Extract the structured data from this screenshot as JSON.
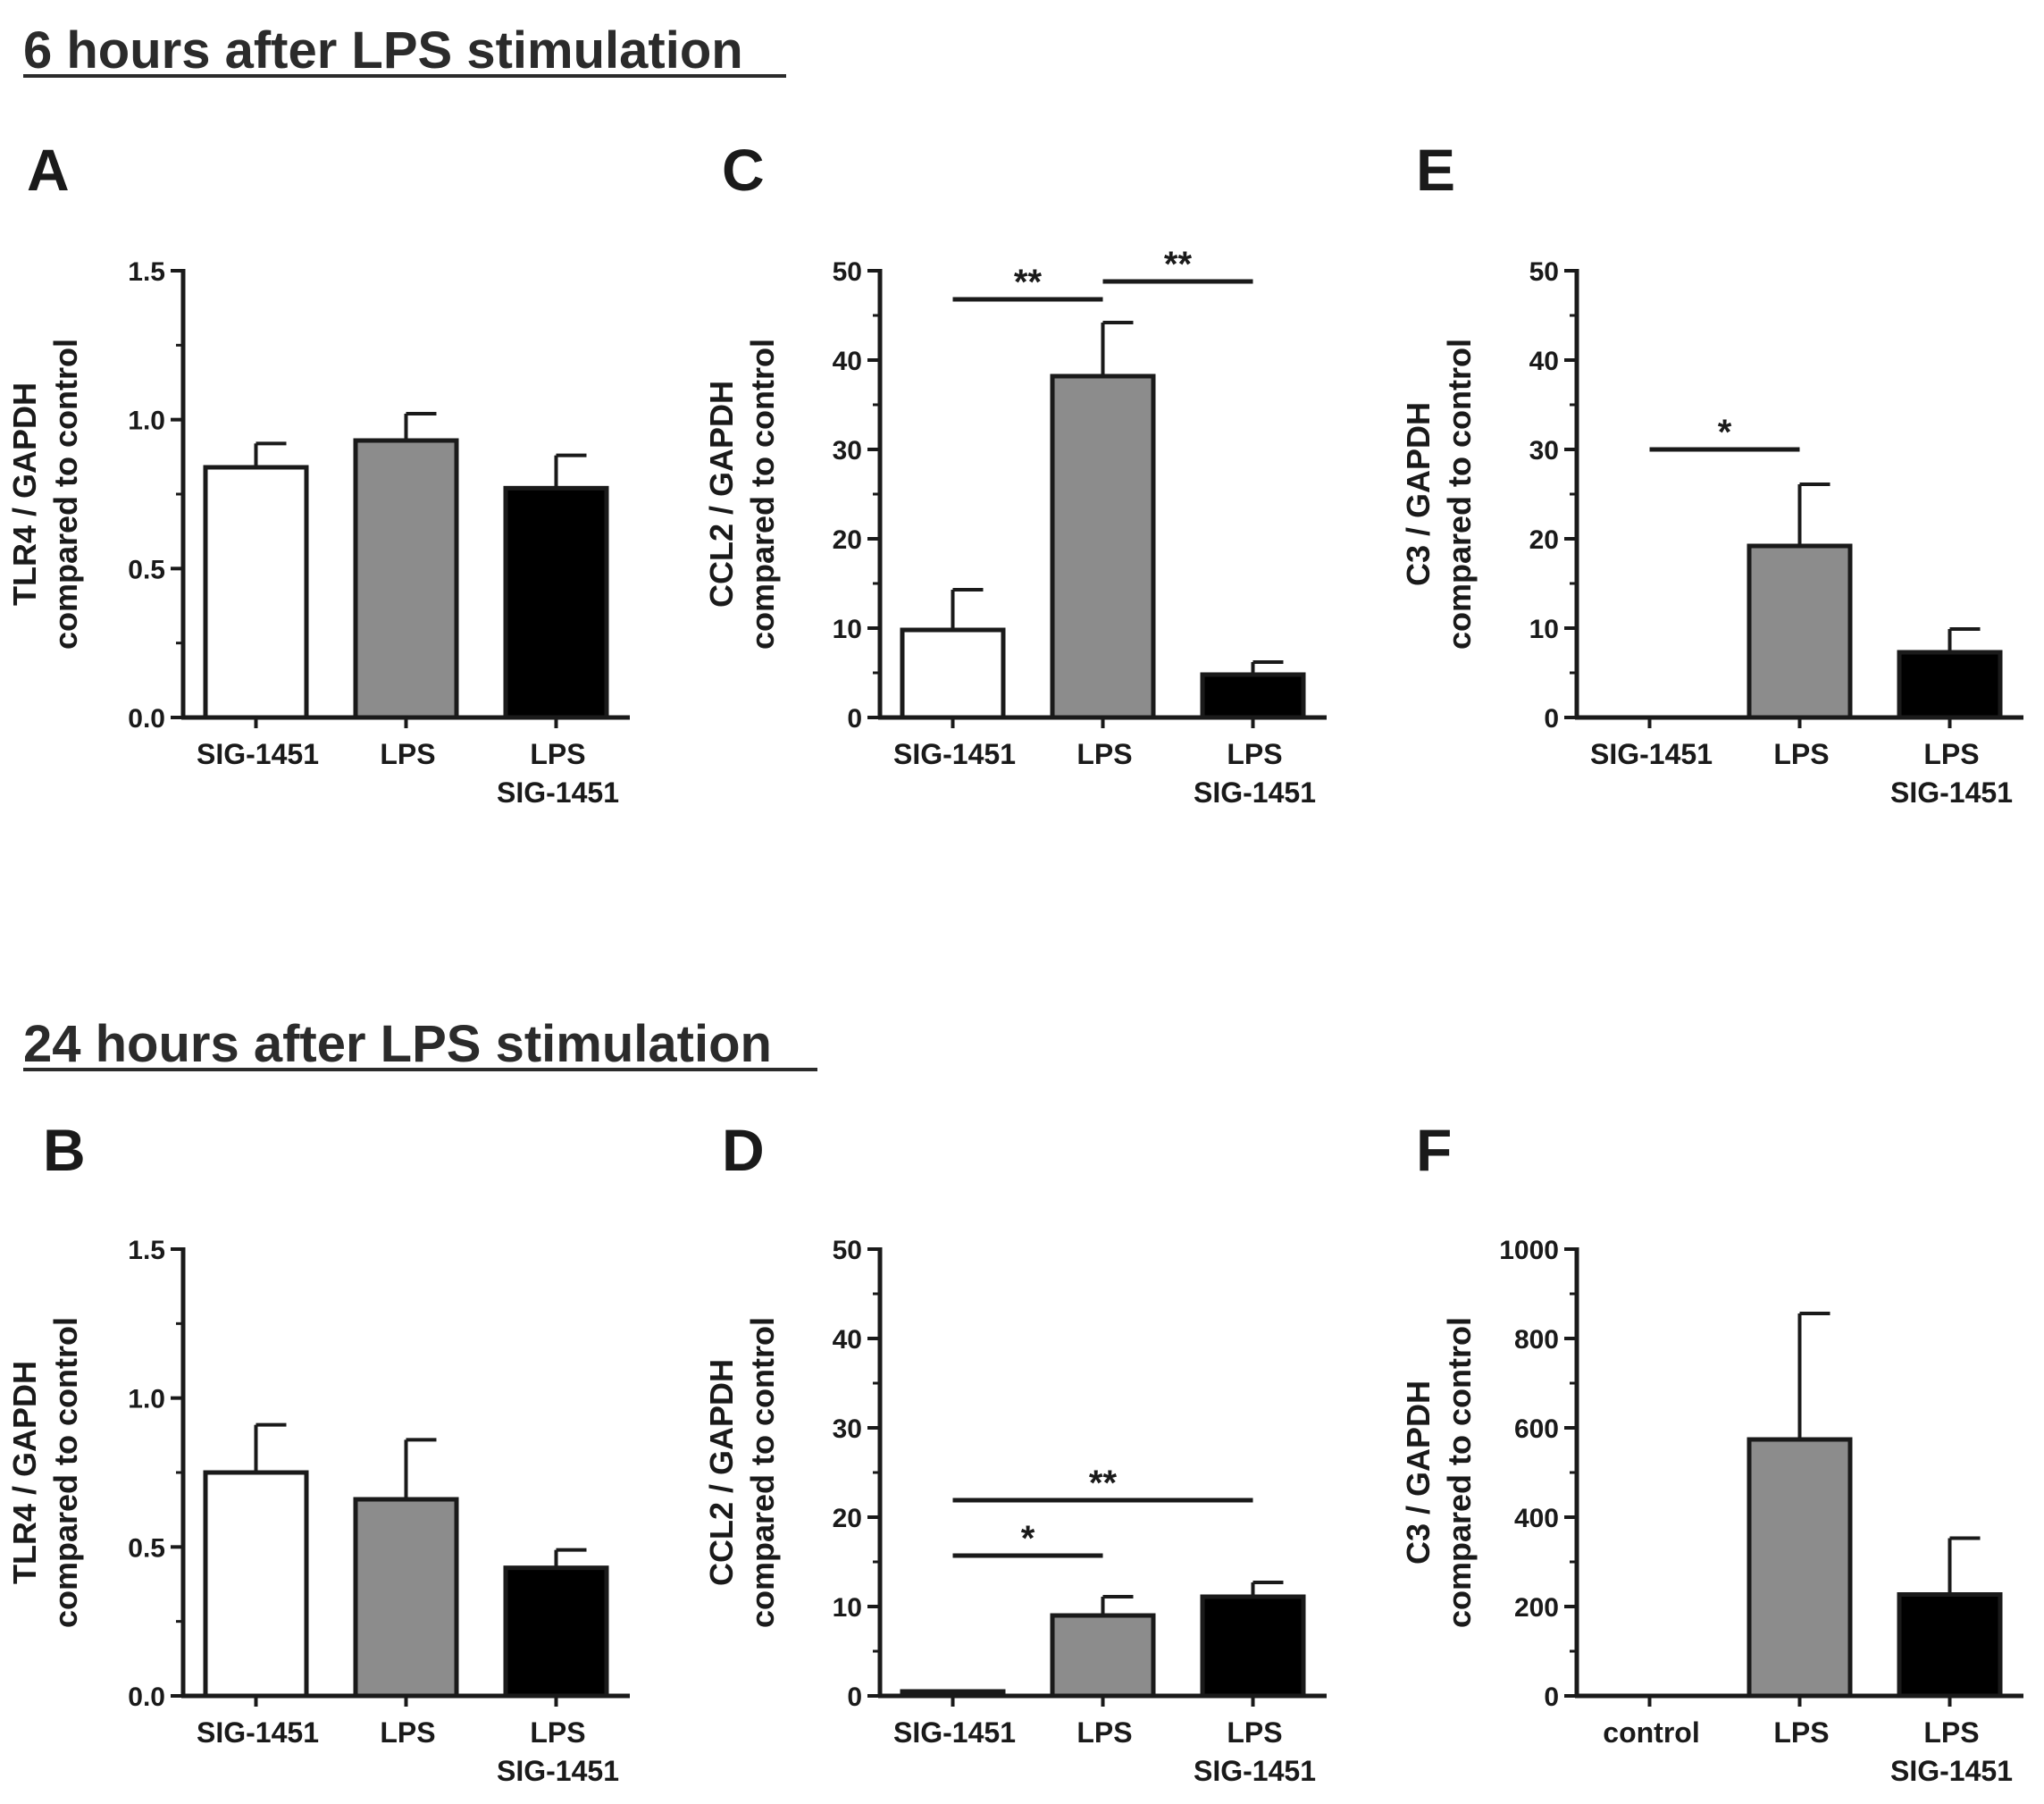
{
  "sections": [
    {
      "title": "6 hours after LPS stimulation"
    },
    {
      "title": "24 hours after LPS stimulation"
    }
  ],
  "colors": {
    "bar_fills": [
      "#ffffff",
      "#8c8c8c",
      "#000000"
    ],
    "ink": "#1a1a1a"
  },
  "chart_data": [
    {
      "panel": "A",
      "type": "bar",
      "section": "6 hours after LPS stimulation",
      "categories": [
        "SIG-1451",
        "LPS",
        "LPS\nSIG-1451"
      ],
      "values": [
        0.84,
        0.93,
        0.77
      ],
      "errors": [
        0.08,
        0.09,
        0.11
      ],
      "ylabel": [
        "TLR4 / GAPDH",
        "compared to control"
      ],
      "ylim": [
        0,
        1.5
      ],
      "yticks": [
        0.0,
        0.5,
        1.0,
        1.5
      ],
      "ytick_labels": [
        "0.0",
        "0.5",
        "1.0",
        "1.5"
      ],
      "minor_ticks": 1,
      "significance": []
    },
    {
      "panel": "C",
      "type": "bar",
      "section": "6 hours after LPS stimulation",
      "categories": [
        "SIG-1451",
        "LPS",
        "LPS\nSIG-1451"
      ],
      "values": [
        9.8,
        38.2,
        4.8
      ],
      "errors": [
        4.5,
        6.0,
        1.4
      ],
      "ylabel": [
        "CCL2 / GAPDH",
        "compared to control"
      ],
      "ylim": [
        0,
        50
      ],
      "yticks": [
        0,
        10,
        20,
        30,
        40,
        50
      ],
      "ytick_labels": [
        "0",
        "10",
        "20",
        "30",
        "40",
        "50"
      ],
      "minor_ticks": 1,
      "significance": [
        {
          "from": 0,
          "to": 1,
          "y": 46.8,
          "label": "**"
        },
        {
          "from": 1,
          "to": 2,
          "y": 48.8,
          "label": "**"
        }
      ]
    },
    {
      "panel": "E",
      "type": "bar",
      "section": "6 hours after LPS stimulation",
      "categories": [
        "SIG-1451",
        "LPS",
        "LPS\nSIG-1451"
      ],
      "values": [
        0,
        19.2,
        7.3
      ],
      "errors": [
        0,
        6.9,
        2.6
      ],
      "ylabel": [
        "C3 / GAPDH",
        "compared to control"
      ],
      "ylim": [
        0,
        50
      ],
      "yticks": [
        0,
        10,
        20,
        30,
        40,
        50
      ],
      "ytick_labels": [
        "0",
        "10",
        "20",
        "30",
        "40",
        "50"
      ],
      "minor_ticks": 1,
      "significance": [
        {
          "from": 0,
          "to": 1,
          "y": 30,
          "label": "*"
        }
      ]
    },
    {
      "panel": "B",
      "type": "bar",
      "section": "24 hours after LPS stimulation",
      "categories": [
        "SIG-1451",
        "LPS",
        "LPS\nSIG-1451"
      ],
      "values": [
        0.75,
        0.66,
        0.43
      ],
      "errors": [
        0.16,
        0.2,
        0.06
      ],
      "ylabel": [
        "TLR4 / GAPDH",
        "compared to control"
      ],
      "ylim": [
        0,
        1.5
      ],
      "yticks": [
        0.0,
        0.5,
        1.0,
        1.5
      ],
      "ytick_labels": [
        "0.0",
        "0.5",
        "1.0",
        "1.5"
      ],
      "minor_ticks": 1,
      "significance": []
    },
    {
      "panel": "D",
      "type": "bar",
      "section": "24 hours after LPS stimulation",
      "categories": [
        "SIG-1451",
        "LPS",
        "LPS\nSIG-1451"
      ],
      "values": [
        0.5,
        9.0,
        11.1
      ],
      "errors": [
        0,
        2.1,
        1.6
      ],
      "ylabel": [
        "CCL2 / GAPDH",
        "compared to control"
      ],
      "ylim": [
        0,
        50
      ],
      "yticks": [
        0,
        10,
        20,
        30,
        40,
        50
      ],
      "ytick_labels": [
        "0",
        "10",
        "20",
        "30",
        "40",
        "50"
      ],
      "minor_ticks": 1,
      "significance": [
        {
          "from": 0,
          "to": 2,
          "y": 21.9,
          "label": "**"
        },
        {
          "from": 0,
          "to": 1,
          "y": 15.7,
          "label": "*"
        }
      ]
    },
    {
      "panel": "F",
      "type": "bar",
      "section": "24 hours after LPS stimulation",
      "categories": [
        "control",
        "LPS",
        "LPS\nSIG-1451"
      ],
      "values": [
        0,
        574,
        227
      ],
      "errors": [
        0,
        282,
        126
      ],
      "ylabel": [
        "C3 / GAPDH",
        "compared to control"
      ],
      "ylim": [
        0,
        1000
      ],
      "yticks": [
        0,
        200,
        400,
        600,
        800,
        1000
      ],
      "ytick_labels": [
        "0",
        "200",
        "400",
        "600",
        "800",
        "1000"
      ],
      "minor_ticks": 1,
      "significance": []
    }
  ]
}
